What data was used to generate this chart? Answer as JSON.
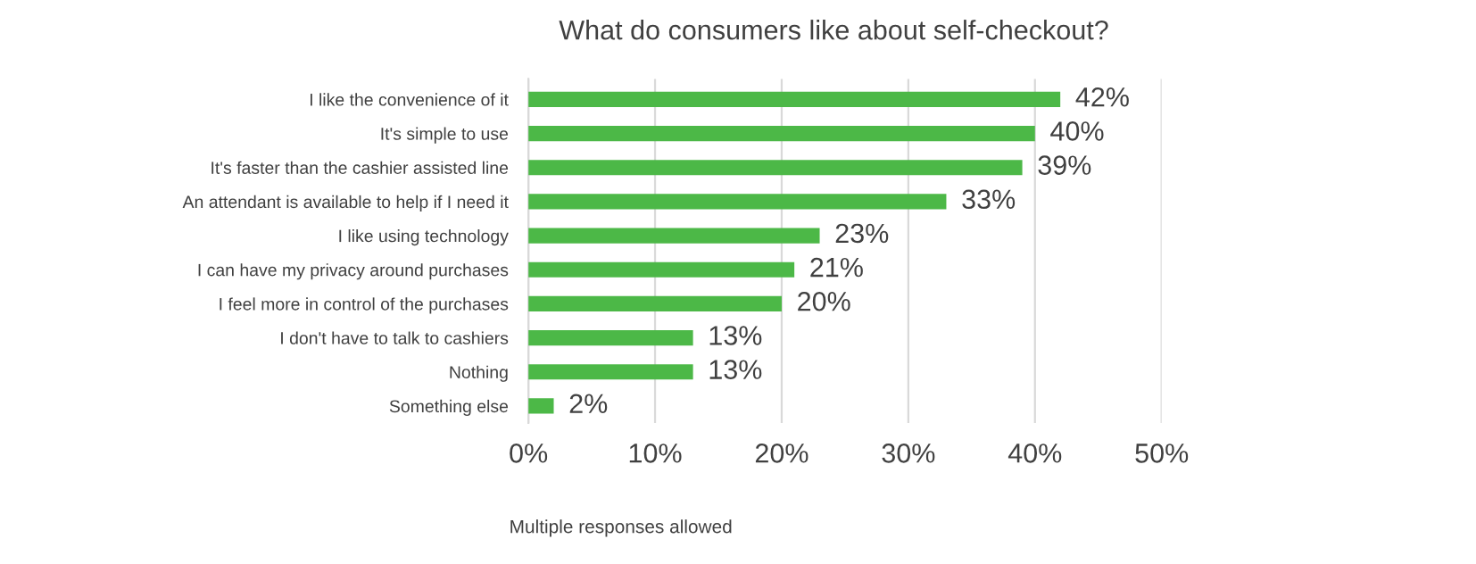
{
  "chart_data": {
    "type": "bar",
    "orientation": "horizontal",
    "title": "What do consumers like about self-checkout?",
    "categories": [
      "I like the convenience of it",
      "It's simple to use",
      "It's faster than the cashier assisted line",
      "An attendant is available to help if I need it",
      "I like using technology",
      "I can have my privacy around purchases",
      "I feel more in control of the purchases",
      "I don't have to talk to cashiers",
      "Nothing",
      "Something else"
    ],
    "values": [
      42,
      40,
      39,
      33,
      23,
      21,
      20,
      13,
      13,
      2
    ],
    "value_labels": [
      "42%",
      "40%",
      "39%",
      "33%",
      "23%",
      "21%",
      "20%",
      "13%",
      "13%",
      "2%"
    ],
    "color": "#4cb847",
    "xlim": [
      0,
      50
    ],
    "xticks": [
      {
        "value": 0,
        "label": "0%"
      },
      {
        "value": 10,
        "label": "10%"
      },
      {
        "value": 20,
        "label": "20%"
      },
      {
        "value": 30,
        "label": "30%"
      },
      {
        "value": 40,
        "label": "40%"
      },
      {
        "value": 50,
        "label": "50%"
      }
    ],
    "grid": "x",
    "annotations": [
      "Multiple responses allowed"
    ]
  }
}
